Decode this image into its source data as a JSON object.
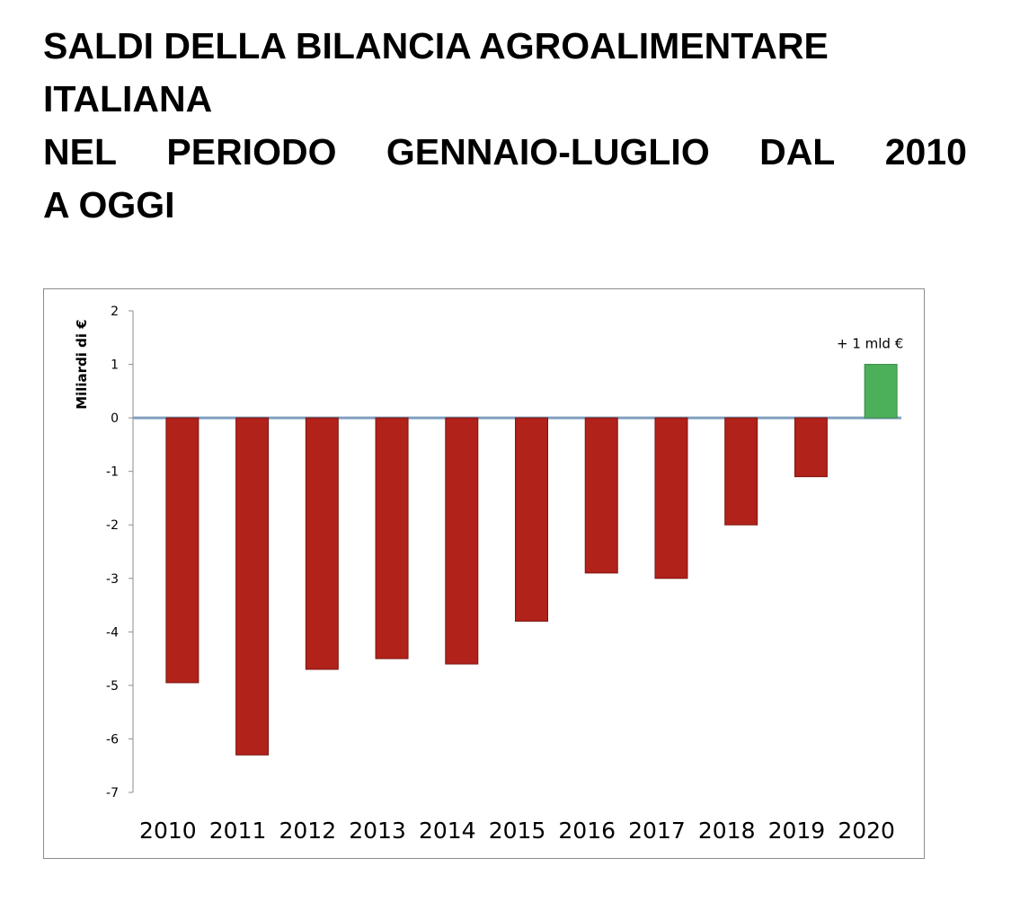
{
  "title": {
    "line1": "SALDI DELLA BILANCIA AGROALIMENTARE",
    "line2": "ITALIANA",
    "line3": "NEL PERIODO GENNAIO-LUGLIO DAL 2010",
    "line4": "A OGGI"
  },
  "chart_data": {
    "type": "bar",
    "title": "",
    "xlabel": "",
    "ylabel": "Miliardi di €",
    "categories": [
      "2010",
      "2011",
      "2012",
      "2013",
      "2014",
      "2015",
      "2016",
      "2017",
      "2018",
      "2019",
      "2020"
    ],
    "values": [
      -4.95,
      -6.3,
      -4.7,
      -4.5,
      -4.6,
      -3.8,
      -2.9,
      -3.0,
      -2.0,
      -1.1,
      1.0
    ],
    "ylim": [
      -7,
      2
    ],
    "yticks": [
      2,
      1,
      0,
      -1,
      -2,
      -3,
      -4,
      -5,
      -6,
      -7
    ],
    "negative_color": "#b0221a",
    "positive_color": "#4caf5a",
    "baseline_color": "#7f9fbf",
    "grid": false,
    "legend": "none",
    "annotation": {
      "text": "+ 1 mld €",
      "category": "2020"
    }
  }
}
